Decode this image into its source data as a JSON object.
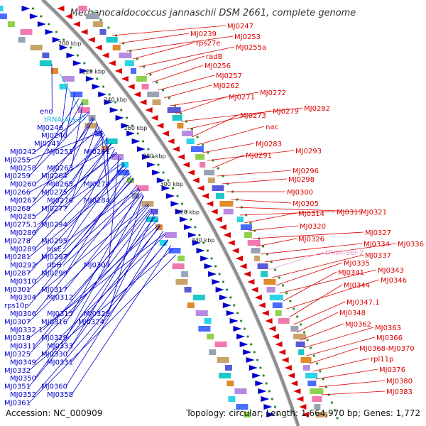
{
  "title": "Methanocaldococcus jannaschii DSM 2661, complete genome",
  "accession": "Accession: NC_000909",
  "summary": "Topology: circular; Length: 1,664,970 bp; Genes: 1,772",
  "ticks": [
    "200 kbp",
    "220 kbp",
    "240 kbp",
    "260 kbp",
    "280 kbp",
    "300 kbp",
    "320 kbp",
    "340 kbp"
  ],
  "colors": {
    "forward": "#0000cc",
    "reverse": "#dd0000",
    "trna_left": "#20b8d8",
    "trna_right": "#e8a0d0",
    "backbone": "#8c8c8c"
  },
  "left_labels": [
    {
      "t": "eno",
      "c": "blue"
    },
    {
      "t": "tRNA-Ala-2",
      "c": "cyan"
    },
    {
      "t": "MJ0246",
      "c": "blue"
    },
    {
      "t": "MJ0240",
      "c": "blue"
    },
    {
      "t": "MJ0241",
      "c": "blue"
    },
    {
      "t": "MJ0242",
      "c": "blue"
    },
    {
      "t": "MJ0251",
      "c": "blue"
    },
    {
      "t": "MJ0261",
      "c": "blue"
    },
    {
      "t": "MJ0255",
      "c": "blue"
    },
    {
      "t": "MJ0258",
      "c": "blue"
    },
    {
      "t": "MJ0263",
      "c": "blue"
    },
    {
      "t": "MJ0259",
      "c": "blue"
    },
    {
      "t": "MJ0264",
      "c": "blue"
    },
    {
      "t": "MJ0260",
      "c": "blue"
    },
    {
      "t": "MJ0265",
      "c": "blue"
    },
    {
      "t": "MJ0274",
      "c": "blue"
    },
    {
      "t": "MJ0266",
      "c": "blue"
    },
    {
      "t": "MJ0275",
      "c": "blue"
    },
    {
      "t": "MJ0267",
      "c": "blue"
    },
    {
      "t": "MJ0276",
      "c": "blue"
    },
    {
      "t": "MJ0284",
      "c": "blue"
    },
    {
      "t": "MJ0268",
      "c": "blue"
    },
    {
      "t": "MJ0277",
      "c": "blue"
    },
    {
      "t": "MJ0285",
      "c": "blue"
    },
    {
      "t": "MJ0275.1",
      "c": "blue"
    },
    {
      "t": "MJ0294",
      "c": "blue"
    },
    {
      "t": "MJ0286",
      "c": "blue"
    },
    {
      "t": "MJ0278",
      "c": "blue"
    },
    {
      "t": "MJ0295",
      "c": "blue"
    },
    {
      "t": "MJ0289",
      "c": "blue"
    },
    {
      "t": "hisE",
      "c": "blue"
    },
    {
      "t": "MJ0281",
      "c": "blue"
    },
    {
      "t": "MJ0297",
      "c": "blue"
    },
    {
      "t": "MJ0292",
      "c": "blue"
    },
    {
      "t": "ribH",
      "c": "blue"
    },
    {
      "t": "MJ0309",
      "c": "blue"
    },
    {
      "t": "MJ0287",
      "c": "blue"
    },
    {
      "t": "MJ0299",
      "c": "blue"
    },
    {
      "t": "MJ0310",
      "c": "blue"
    },
    {
      "t": "MJ0301",
      "c": "blue"
    },
    {
      "t": "MJ0317",
      "c": "blue"
    },
    {
      "t": "MJ0304",
      "c": "blue"
    },
    {
      "t": "MJ0312",
      "c": "blue"
    },
    {
      "t": "rps10p",
      "c": "blue"
    },
    {
      "t": "MJ0306",
      "c": "blue"
    },
    {
      "t": "MJ0315",
      "c": "blue"
    },
    {
      "t": "MJ0328",
      "c": "blue"
    },
    {
      "t": "MJ0307",
      "c": "blue"
    },
    {
      "t": "MJ0316",
      "c": "blue"
    },
    {
      "t": "MJ0324",
      "c": "blue"
    },
    {
      "t": "MJ0332.1",
      "c": "blue"
    },
    {
      "t": "MJ0318",
      "c": "blue"
    },
    {
      "t": "MJ0329",
      "c": "blue"
    },
    {
      "t": "MJ0311",
      "c": "blue"
    },
    {
      "t": "MJ0333",
      "c": "blue"
    },
    {
      "t": "MJ0325",
      "c": "blue"
    },
    {
      "t": "MJ0330",
      "c": "blue"
    },
    {
      "t": "MJ0349",
      "c": "blue"
    },
    {
      "t": "MJ0331",
      "c": "blue"
    },
    {
      "t": "MJ0332",
      "c": "blue"
    },
    {
      "t": "MJ0350",
      "c": "blue"
    },
    {
      "t": "MJ0351",
      "c": "blue"
    },
    {
      "t": "MJ0360",
      "c": "blue"
    },
    {
      "t": "MJ0352",
      "c": "blue"
    },
    {
      "t": "MJ0358",
      "c": "blue"
    },
    {
      "t": "MJ0361",
      "c": "blue"
    }
  ],
  "right_labels": [
    {
      "t": "MJ0247",
      "c": "red"
    },
    {
      "t": "MJ0239",
      "c": "red"
    },
    {
      "t": "MJ0253",
      "c": "red"
    },
    {
      "t": "rps27e",
      "c": "red"
    },
    {
      "t": "MJ0255a",
      "c": "red"
    },
    {
      "t": "radB",
      "c": "red"
    },
    {
      "t": "MJ0256",
      "c": "red"
    },
    {
      "t": "MJ0257",
      "c": "red"
    },
    {
      "t": "MJ0262",
      "c": "red"
    },
    {
      "t": "MJ0272",
      "c": "red"
    },
    {
      "t": "MJ0271",
      "c": "red"
    },
    {
      "t": "MJ0282",
      "c": "red"
    },
    {
      "t": "MJ0279",
      "c": "red"
    },
    {
      "t": "MJ0273",
      "c": "red"
    },
    {
      "t": "nac",
      "c": "red"
    },
    {
      "t": "MJ0283",
      "c": "red"
    },
    {
      "t": "MJ0293",
      "c": "red"
    },
    {
      "t": "MJ0291",
      "c": "red"
    },
    {
      "t": "MJ0296",
      "c": "red"
    },
    {
      "t": "MJ0298",
      "c": "red"
    },
    {
      "t": "MJ0300",
      "c": "red"
    },
    {
      "t": "MJ0305",
      "c": "red"
    },
    {
      "t": "MJ0321",
      "c": "red"
    },
    {
      "t": "MJ0319",
      "c": "red"
    },
    {
      "t": "MJ0314",
      "c": "red"
    },
    {
      "t": "MJ0320",
      "c": "red"
    },
    {
      "t": "MJ0327",
      "c": "red"
    },
    {
      "t": "MJ0326",
      "c": "red"
    },
    {
      "t": "MJ0334",
      "c": "red"
    },
    {
      "t": "MJ0336",
      "c": "red"
    },
    {
      "t": "tRNA-Ser-2",
      "c": "pink"
    },
    {
      "t": "MJ0337",
      "c": "red"
    },
    {
      "t": "MJ0335",
      "c": "red"
    },
    {
      "t": "MJ0343",
      "c": "red"
    },
    {
      "t": "MJ0341",
      "c": "red"
    },
    {
      "t": "MJ0346",
      "c": "red"
    },
    {
      "t": "MJ0344",
      "c": "red"
    },
    {
      "t": "MJ0347.1",
      "c": "red"
    },
    {
      "t": "MJ0348",
      "c": "red"
    },
    {
      "t": "MJ0362",
      "c": "red"
    },
    {
      "t": "MJ0363",
      "c": "red"
    },
    {
      "t": "MJ0366",
      "c": "red"
    },
    {
      "t": "MJ0368-MJ0370",
      "c": "red"
    },
    {
      "t": "rpl11p",
      "c": "red"
    },
    {
      "t": "MJ0376",
      "c": "red"
    },
    {
      "t": "MJ0380",
      "c": "red"
    },
    {
      "t": "MJ0383",
      "c": "red"
    }
  ]
}
